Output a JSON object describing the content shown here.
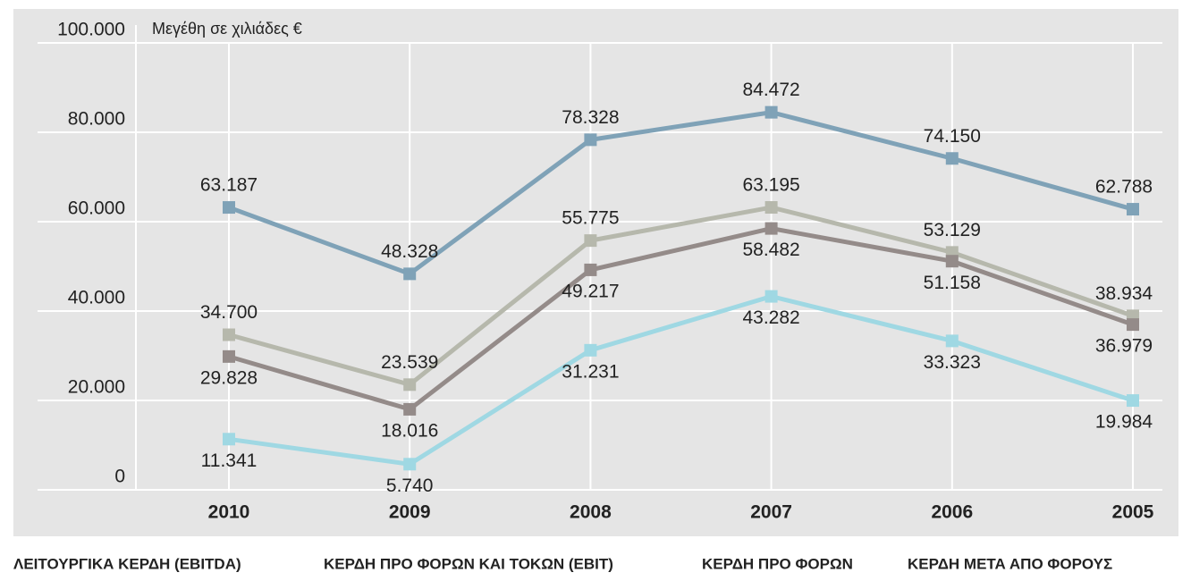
{
  "chart_data": {
    "type": "line",
    "y_label": "Μεγέθη σε χιλιάδες €",
    "categories": [
      "2010",
      "2009",
      "2008",
      "2007",
      "2006",
      "2005"
    ],
    "ylim": [
      0,
      100000
    ],
    "yticks": [
      0,
      {
        "value": 20000,
        "label": "20.000"
      },
      {
        "value": 40000,
        "label": "40.000"
      },
      {
        "value": 60000,
        "label": "60.000"
      },
      {
        "value": 80000,
        "label": "80.000"
      },
      {
        "value": 100000,
        "label": "100.000"
      }
    ],
    "grid": true,
    "series": [
      {
        "name": "ΛΕΙΤΟΥΡΓΙΚΑ ΚΕΡΔΗ (EBITDA)",
        "color": "#7fa2b7",
        "values": [
          63187,
          48328,
          78328,
          84472,
          74150,
          62788
        ],
        "value_labels": [
          "63.187",
          "48.328",
          "78.328",
          "84.472",
          "74.150",
          "62.788"
        ]
      },
      {
        "name": "ΚΕΡΔΗ ΠΡΟ ΦΟΡΩΝ ΚΑΙ ΤΟΚΩΝ (EBIT)",
        "color": "#b6b8ac",
        "values": [
          34700,
          23539,
          55775,
          63195,
          53129,
          38934
        ],
        "value_labels": [
          "34.700",
          "23.539",
          "55.775",
          "63.195",
          "53.129",
          "38.934"
        ]
      },
      {
        "name": "ΚΕΡΔΗ ΠΡΟ ΦΟΡΩΝ",
        "color": "#948b89",
        "values": [
          29828,
          18016,
          49217,
          58482,
          51158,
          36979
        ],
        "value_labels": [
          "29.828",
          "18.016",
          "49.217",
          "58.482",
          "51.158",
          "36.979"
        ]
      },
      {
        "name": "ΚΕΡΔΗ ΜΕΤΑ ΑΠΟ ΦΟΡΟΥΣ",
        "color": "#9fd8e3",
        "values": [
          11341,
          5740,
          31231,
          43282,
          33323,
          19984
        ],
        "value_labels": [
          "11.341",
          "5.740",
          "31.231",
          "43.282",
          "33.323",
          "19.984"
        ]
      }
    ]
  }
}
